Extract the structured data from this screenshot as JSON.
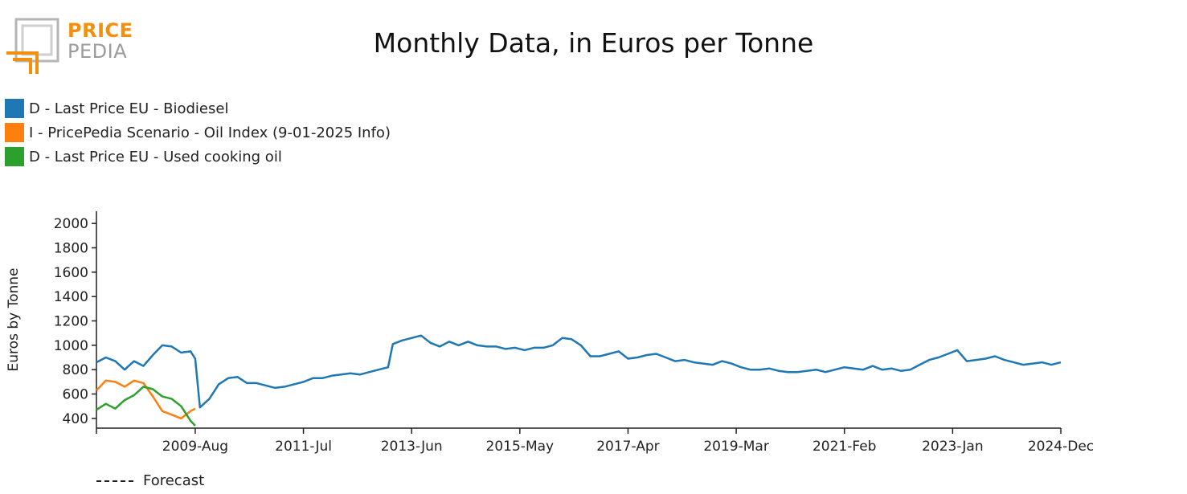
{
  "logo": {
    "line1": "PRICE",
    "line2": "PEDIA"
  },
  "chart_data": {
    "type": "line",
    "title": "Monthly Data, in Euros per Tonne",
    "ylabel": "Euros by Tonne",
    "xlabel": "",
    "ylim": [
      320,
      2100
    ],
    "yticks": [
      400,
      600,
      800,
      1000,
      1200,
      1400,
      1600,
      1800,
      2000
    ],
    "xrange": [
      "2007-11",
      "2024-12"
    ],
    "xticks": [
      "2009-Aug",
      "2011-Jul",
      "2013-Jun",
      "2015-May",
      "2017-Apr",
      "2019-Mar",
      "2021-Feb",
      "2023-Jan",
      "2024-Dec"
    ],
    "legend_position": "top-left",
    "grid": false,
    "forecast_label": "Forecast",
    "series": [
      {
        "name": "D - Last Price EU - Biodiesel",
        "color": "#1f77b4",
        "points": [
          [
            "2007-11",
            860
          ],
          [
            "2008-01",
            900
          ],
          [
            "2008-03",
            870
          ],
          [
            "2008-05",
            800
          ],
          [
            "2008-07",
            870
          ],
          [
            "2008-09",
            830
          ],
          [
            "2008-11",
            920
          ],
          [
            "2009-01",
            1000
          ],
          [
            "2009-03",
            990
          ],
          [
            "2009-05",
            940
          ],
          [
            "2009-07",
            950
          ],
          [
            "2009-08",
            890
          ],
          [
            "2009-09",
            490
          ],
          [
            "2009-11",
            560
          ],
          [
            "2010-01",
            680
          ],
          [
            "2010-03",
            730
          ],
          [
            "2010-05",
            740
          ],
          [
            "2010-07",
            690
          ],
          [
            "2010-09",
            690
          ],
          [
            "2010-11",
            670
          ],
          [
            "2011-01",
            650
          ],
          [
            "2011-03",
            660
          ],
          [
            "2011-05",
            680
          ],
          [
            "2011-07",
            700
          ],
          [
            "2011-09",
            730
          ],
          [
            "2011-11",
            730
          ],
          [
            "2012-01",
            750
          ],
          [
            "2012-03",
            760
          ],
          [
            "2012-05",
            770
          ],
          [
            "2012-07",
            760
          ],
          [
            "2012-09",
            780
          ],
          [
            "2012-11",
            800
          ],
          [
            "2013-01",
            820
          ],
          [
            "2013-02",
            1010
          ],
          [
            "2013-04",
            1040
          ],
          [
            "2013-06",
            1060
          ],
          [
            "2013-08",
            1080
          ],
          [
            "2013-10",
            1020
          ],
          [
            "2013-12",
            990
          ],
          [
            "2014-02",
            1030
          ],
          [
            "2014-04",
            1000
          ],
          [
            "2014-06",
            1030
          ],
          [
            "2014-08",
            1000
          ],
          [
            "2014-10",
            990
          ],
          [
            "2014-12",
            990
          ],
          [
            "2015-02",
            970
          ],
          [
            "2015-04",
            980
          ],
          [
            "2015-06",
            960
          ],
          [
            "2015-08",
            980
          ],
          [
            "2015-10",
            980
          ],
          [
            "2015-12",
            1000
          ],
          [
            "2016-02",
            1060
          ],
          [
            "2016-04",
            1050
          ],
          [
            "2016-06",
            1000
          ],
          [
            "2016-08",
            910
          ],
          [
            "2016-10",
            910
          ],
          [
            "2016-12",
            930
          ],
          [
            "2017-02",
            950
          ],
          [
            "2017-04",
            890
          ],
          [
            "2017-06",
            900
          ],
          [
            "2017-08",
            920
          ],
          [
            "2017-10",
            930
          ],
          [
            "2017-12",
            900
          ],
          [
            "2018-02",
            870
          ],
          [
            "2018-04",
            880
          ],
          [
            "2018-06",
            860
          ],
          [
            "2018-08",
            850
          ],
          [
            "2018-10",
            840
          ],
          [
            "2018-12",
            870
          ],
          [
            "2019-02",
            850
          ],
          [
            "2019-04",
            820
          ],
          [
            "2019-06",
            800
          ],
          [
            "2019-08",
            800
          ],
          [
            "2019-10",
            810
          ],
          [
            "2019-12",
            790
          ],
          [
            "2020-02",
            780
          ],
          [
            "2020-04",
            780
          ],
          [
            "2020-06",
            790
          ],
          [
            "2020-08",
            800
          ],
          [
            "2020-10",
            780
          ],
          [
            "2020-12",
            800
          ],
          [
            "2021-02",
            820
          ],
          [
            "2021-04",
            810
          ],
          [
            "2021-06",
            800
          ],
          [
            "2021-08",
            830
          ],
          [
            "2021-10",
            800
          ],
          [
            "2021-12",
            810
          ],
          [
            "2022-02",
            790
          ],
          [
            "2022-04",
            800
          ],
          [
            "2022-06",
            840
          ],
          [
            "2022-08",
            880
          ],
          [
            "2022-10",
            900
          ],
          [
            "2022-12",
            930
          ],
          [
            "2023-02",
            960
          ],
          [
            "2023-04",
            870
          ],
          [
            "2023-06",
            880
          ],
          [
            "2023-08",
            890
          ],
          [
            "2023-10",
            910
          ],
          [
            "2023-12",
            880
          ],
          [
            "2024-02",
            860
          ],
          [
            "2024-04",
            840
          ],
          [
            "2024-06",
            850
          ],
          [
            "2024-08",
            860
          ],
          [
            "2024-10",
            840
          ],
          [
            "2024-12",
            860
          ]
        ]
      },
      {
        "name": "I - PricePedia Scenario - Oil Index (9-01-2025 Info)",
        "color": "#ff7f0e",
        "points": [
          [
            "2007-11",
            630
          ],
          [
            "2008-01",
            710
          ],
          [
            "2008-03",
            700
          ],
          [
            "2008-05",
            660
          ],
          [
            "2008-07",
            710
          ],
          [
            "2008-09",
            690
          ],
          [
            "2008-11",
            580
          ],
          [
            "2009-01",
            460
          ],
          [
            "2009-03",
            430
          ],
          [
            "2009-05",
            400
          ],
          [
            "2009-07",
            460
          ],
          [
            "2009-08",
            480
          ]
        ]
      },
      {
        "name": "D - Last Price EU - Used cooking oil",
        "color": "#2ca02c",
        "points": [
          [
            "2007-11",
            470
          ],
          [
            "2008-01",
            520
          ],
          [
            "2008-03",
            480
          ],
          [
            "2008-05",
            550
          ],
          [
            "2008-07",
            590
          ],
          [
            "2008-09",
            660
          ],
          [
            "2008-11",
            640
          ],
          [
            "2009-01",
            580
          ],
          [
            "2009-03",
            560
          ],
          [
            "2009-05",
            500
          ],
          [
            "2009-07",
            380
          ],
          [
            "2009-08",
            340
          ]
        ]
      }
    ]
  }
}
